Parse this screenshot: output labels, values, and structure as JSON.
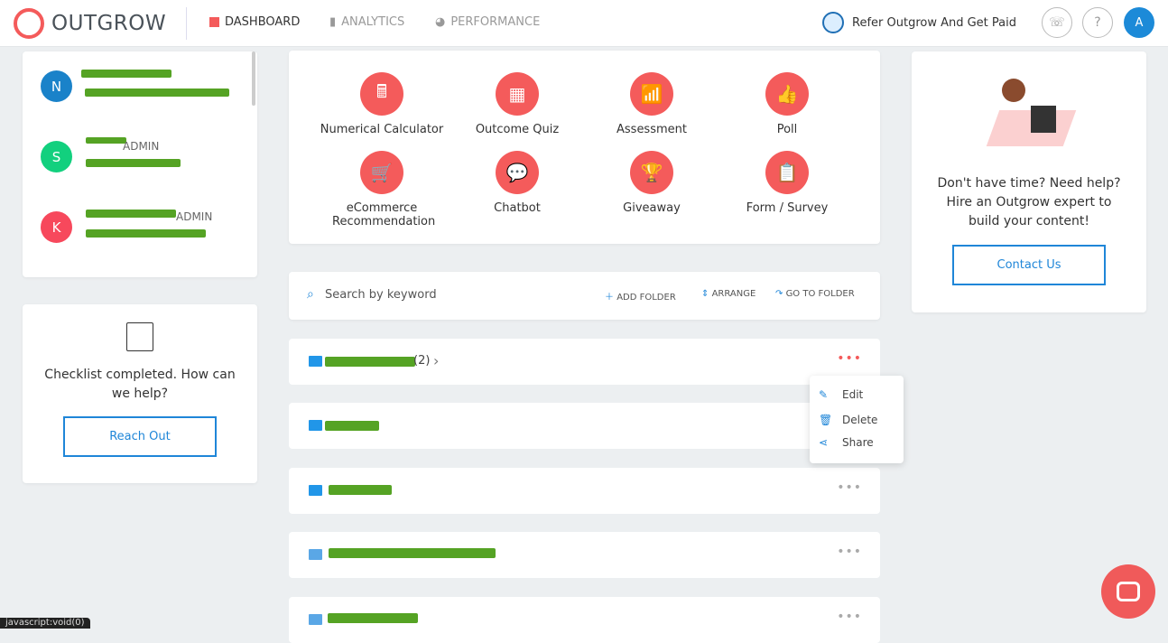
{
  "header": {
    "brand": "OUTGROW",
    "nav": [
      {
        "label": "DASHBOARD",
        "active": true
      },
      {
        "label": "ANALYTICS"
      },
      {
        "label": "PERFORMANCE"
      }
    ],
    "refer": "Refer Outgrow And Get Paid",
    "avatar": "A",
    "phone_icon": "☏",
    "help_icon": "?"
  },
  "users": [
    {
      "initial": "N",
      "color": "#1a82c9",
      "role": ""
    },
    {
      "initial": "S",
      "color": "#12d07e",
      "role": "ADMIN"
    },
    {
      "initial": "K",
      "color": "#f7485c",
      "role": "ADMIN"
    }
  ],
  "checklist": {
    "text": "Checklist completed. How can we help?",
    "button": "Reach Out"
  },
  "templates": [
    {
      "label": "Numerical Calculator",
      "icon": "🖩"
    },
    {
      "label": "Outcome Quiz",
      "icon": "▦"
    },
    {
      "label": "Assessment",
      "icon": "📶"
    },
    {
      "label": "Poll",
      "icon": "👍"
    },
    {
      "label": "eCommerce Recommendation",
      "icon": "🛒"
    },
    {
      "label": "Chatbot",
      "icon": "💬"
    },
    {
      "label": "Giveaway",
      "icon": "🏆"
    },
    {
      "label": "Form / Survey",
      "icon": "📋"
    }
  ],
  "search": {
    "placeholder": "Search by keyword",
    "add_folder": "ADD FOLDER",
    "arrange": "ARRANGE",
    "go_to_folder": "GO TO FOLDER"
  },
  "folders": [
    {
      "count": "(2)"
    },
    {
      "count": ""
    },
    {
      "count": ""
    },
    {
      "count": ""
    },
    {
      "count": ""
    }
  ],
  "menu": {
    "edit": "Edit",
    "delete": "Delete",
    "share": "Share"
  },
  "help": {
    "text": "Don't have time? Need help? Hire an Outgrow expert to build your content!",
    "button": "Contact Us"
  },
  "status_bar": "javascript:void(0)"
}
